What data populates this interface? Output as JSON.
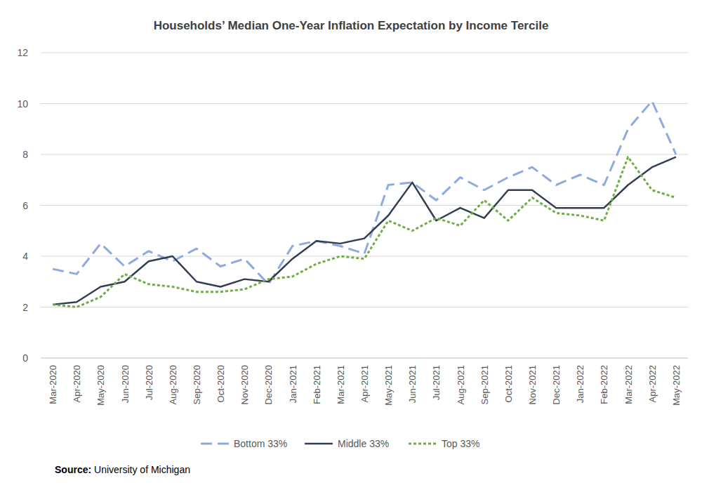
{
  "chart_data": {
    "type": "line",
    "title": "Households’ Median One-Year Inflation Expectation by Income Tercile",
    "annotations": [
      "Source:",
      "University of Michigan"
    ],
    "categories": [
      "Mar-2020",
      "Apr-2020",
      "May-2020",
      "Jun-2020",
      "Jul-2020",
      "Aug-2020",
      "Sep-2020",
      "Oct-2020",
      "Nov-2020",
      "Dec-2020",
      "Jan-2021",
      "Feb-2021",
      "Mar-2021",
      "Apr-2021",
      "May-2021",
      "Jun-2021",
      "Jul-2021",
      "Aug-2021",
      "Sep-2021",
      "Oct-2021",
      "Nov-2021",
      "Dec-2021",
      "Jan-2022",
      "Feb-2022",
      "Mar-2022",
      "Apr-2022",
      "May-2022"
    ],
    "series": [
      {
        "name": "Bottom 33%",
        "color": "#8faadc",
        "line_style": "dashed",
        "values": [
          3.5,
          3.3,
          4.5,
          3.6,
          4.2,
          3.8,
          4.3,
          3.6,
          3.9,
          2.9,
          4.4,
          4.6,
          4.4,
          4.1,
          6.8,
          6.9,
          6.2,
          7.1,
          6.6,
          7.1,
          7.5,
          6.8,
          7.2,
          6.8,
          9.0,
          10.1,
          8.0
        ]
      },
      {
        "name": "Middle 33%",
        "color": "#333f50",
        "line_style": "solid",
        "values": [
          2.1,
          2.2,
          2.8,
          3.0,
          3.8,
          4.0,
          3.0,
          2.8,
          3.1,
          3.0,
          3.9,
          4.6,
          4.5,
          4.7,
          5.6,
          6.9,
          5.4,
          5.9,
          5.5,
          6.6,
          6.6,
          5.9,
          5.9,
          5.9,
          6.8,
          7.5,
          7.9
        ]
      },
      {
        "name": "Top 33%",
        "color": "#70ad47",
        "line_style": "dotted",
        "values": [
          2.1,
          2.0,
          2.4,
          3.3,
          2.9,
          2.8,
          2.6,
          2.6,
          2.7,
          3.1,
          3.2,
          3.7,
          4.0,
          3.9,
          5.4,
          5.0,
          5.5,
          5.2,
          6.2,
          5.4,
          6.3,
          5.7,
          5.6,
          5.4,
          7.9,
          6.6,
          6.3
        ]
      }
    ],
    "ylim": [
      0,
      12
    ],
    "yticks": [
      0,
      2,
      4,
      6,
      8,
      10,
      12
    ],
    "grid": true,
    "legend": "bottom"
  }
}
